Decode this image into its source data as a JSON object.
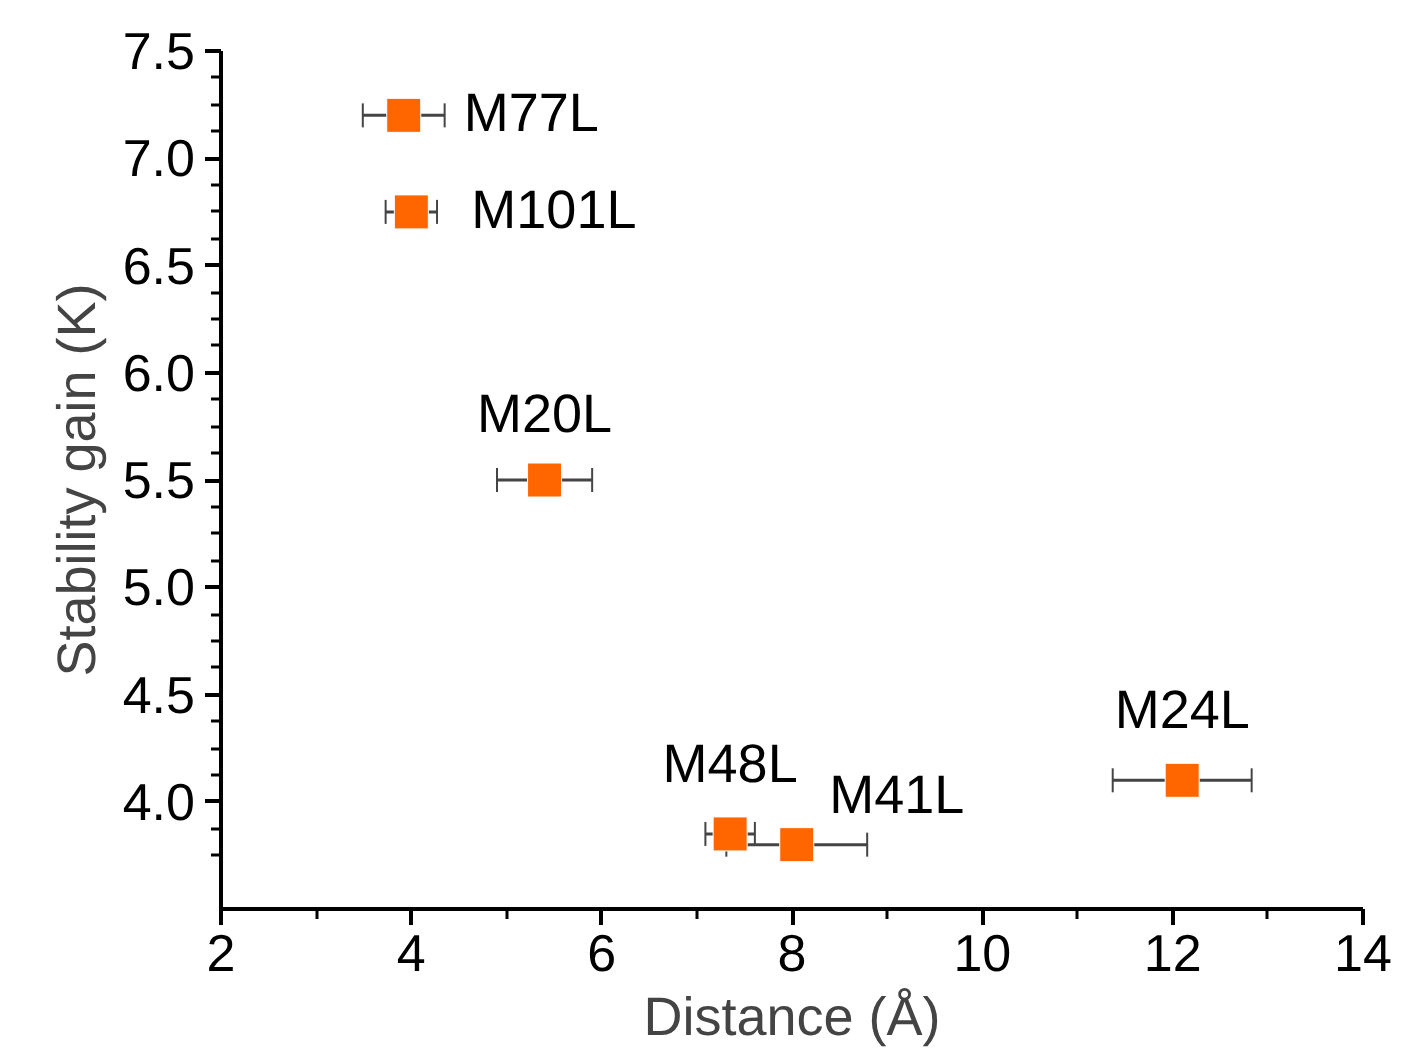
{
  "chart_data": {
    "type": "scatter",
    "xlabel": "Distance (Å)",
    "ylabel": "Stability gain (K)",
    "x": [
      3.92,
      4.0,
      5.4,
      7.35,
      8.05,
      12.1
    ],
    "series": [
      {
        "color": "#ff6600",
        "values": [
          7.2,
          6.75,
          5.5,
          3.85,
          3.8,
          4.1
        ],
        "xerrors": [
          0.43,
          0.27,
          0.5,
          0.26,
          0.74,
          0.73
        ]
      }
    ],
    "marker": "square",
    "annotations": [
      {
        "text": "M77L",
        "x": 3.92,
        "y": 7.2
      },
      {
        "text": "M101L",
        "x": 4.0,
        "y": 6.75
      },
      {
        "text": "M20L",
        "x": 5.4,
        "y": 5.5
      },
      {
        "text": "M48L",
        "x": 7.35,
        "y": 3.85
      },
      {
        "text": "M41L",
        "x": 8.05,
        "y": 3.8
      },
      {
        "text": "M24L",
        "x": 12.1,
        "y": 4.1
      }
    ],
    "xlim": [
      2,
      14
    ],
    "xticks": [
      2,
      4,
      6,
      8,
      10,
      12,
      14
    ],
    "ylim": [
      3.5,
      7.5
    ],
    "yticks": [
      {
        "value": 4,
        "label": "4.0"
      },
      4.5,
      {
        "value": 5,
        "label": "5.0"
      },
      5.5,
      {
        "value": 6,
        "label": "6.0"
      },
      6.5,
      {
        "value": 7,
        "label": "7.0"
      },
      7.5
    ],
    "grid": false
  }
}
